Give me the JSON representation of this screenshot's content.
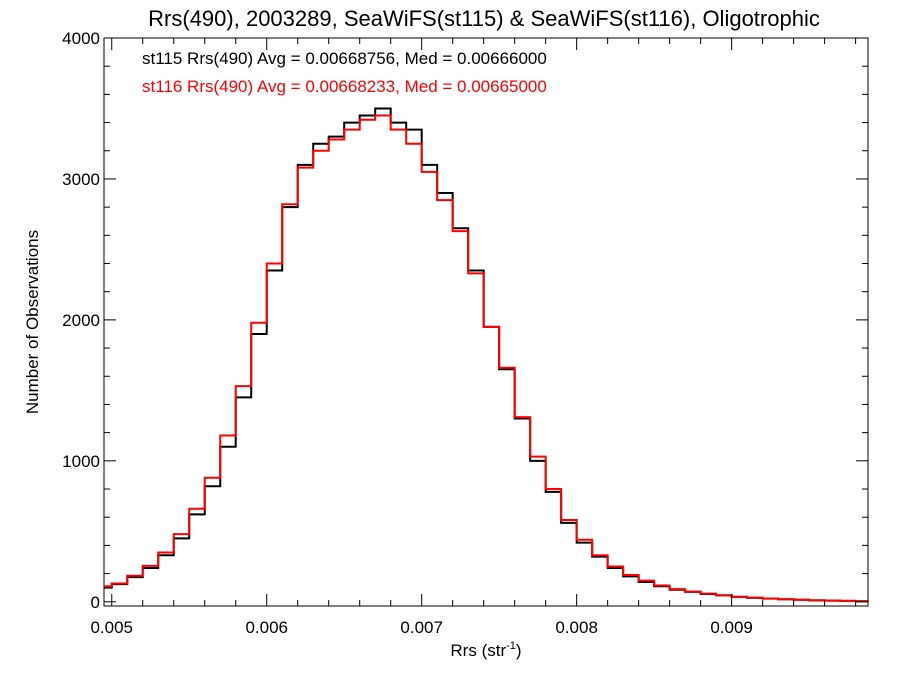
{
  "chart_data": {
    "type": "line",
    "step": true,
    "title": "Rrs(490), 2003289, SeaWiFS(st115) & SeaWiFS(st116), Oligotrophic",
    "xlabel": "Rrs (str",
    "xlabel_sup": "-1",
    "xlabel_close": ")",
    "ylabel": "Number of Observations",
    "xlim": [
      0.00495,
      0.00988
    ],
    "ylim": [
      -30,
      4000
    ],
    "xticks": [
      0.005,
      0.006,
      0.007,
      0.008,
      0.009
    ],
    "xtick_labels": [
      "0.005",
      "0.006",
      "0.007",
      "0.008",
      "0.009"
    ],
    "yticks": [
      0,
      1000,
      2000,
      3000,
      4000
    ],
    "ytick_labels": [
      "0",
      "1000",
      "2000",
      "3000",
      "4000"
    ],
    "grid": false,
    "legend_position": "top-left",
    "series": [
      {
        "label": "st115 Rrs(490) Avg = 0.00668756, Med = 0.00666000",
        "color": "#000000",
        "x": [
          0.00495,
          0.005,
          0.0051,
          0.0052,
          0.0053,
          0.0054,
          0.0055,
          0.0056,
          0.0057,
          0.0058,
          0.0059,
          0.006,
          0.0061,
          0.0062,
          0.0063,
          0.0064,
          0.0065,
          0.0066,
          0.0067,
          0.0068,
          0.0069,
          0.007,
          0.0071,
          0.0072,
          0.0073,
          0.0074,
          0.0075,
          0.0076,
          0.0077,
          0.0078,
          0.0079,
          0.008,
          0.0081,
          0.0082,
          0.0083,
          0.0084,
          0.0085,
          0.0086,
          0.0087,
          0.0088,
          0.0089,
          0.009,
          0.0091,
          0.0092,
          0.0093,
          0.0094,
          0.0095,
          0.0096,
          0.0097,
          0.0098,
          0.00988
        ],
        "y": [
          100,
          125,
          175,
          240,
          330,
          450,
          620,
          820,
          1100,
          1450,
          1900,
          2350,
          2800,
          3100,
          3250,
          3300,
          3400,
          3450,
          3500,
          3400,
          3350,
          3100,
          2900,
          2650,
          2350,
          1950,
          1650,
          1300,
          1000,
          780,
          560,
          420,
          320,
          240,
          180,
          140,
          110,
          85,
          70,
          55,
          45,
          35,
          28,
          22,
          18,
          14,
          10,
          8,
          6,
          4,
          3
        ]
      },
      {
        "label": "st116 Rrs(490) Avg = 0.00668233, Med = 0.00665000",
        "color": "#ff0000",
        "x": [
          0.00495,
          0.005,
          0.0051,
          0.0052,
          0.0053,
          0.0054,
          0.0055,
          0.0056,
          0.0057,
          0.0058,
          0.0059,
          0.006,
          0.0061,
          0.0062,
          0.0063,
          0.0064,
          0.0065,
          0.0066,
          0.0067,
          0.0068,
          0.0069,
          0.007,
          0.0071,
          0.0072,
          0.0073,
          0.0074,
          0.0075,
          0.0076,
          0.0077,
          0.0078,
          0.0079,
          0.008,
          0.0081,
          0.0082,
          0.0083,
          0.0084,
          0.0085,
          0.0086,
          0.0087,
          0.0088,
          0.0089,
          0.009,
          0.0091,
          0.0092,
          0.0093,
          0.0094,
          0.0095,
          0.0096,
          0.0097,
          0.0098,
          0.00988
        ],
        "y": [
          110,
          130,
          185,
          255,
          350,
          480,
          660,
          880,
          1180,
          1530,
          1980,
          2400,
          2820,
          3080,
          3200,
          3280,
          3350,
          3420,
          3450,
          3350,
          3250,
          3050,
          2850,
          2630,
          2330,
          1950,
          1660,
          1310,
          1030,
          800,
          580,
          440,
          330,
          250,
          190,
          150,
          115,
          90,
          72,
          58,
          46,
          36,
          29,
          23,
          18,
          14,
          11,
          8,
          6,
          4,
          3
        ]
      }
    ]
  }
}
